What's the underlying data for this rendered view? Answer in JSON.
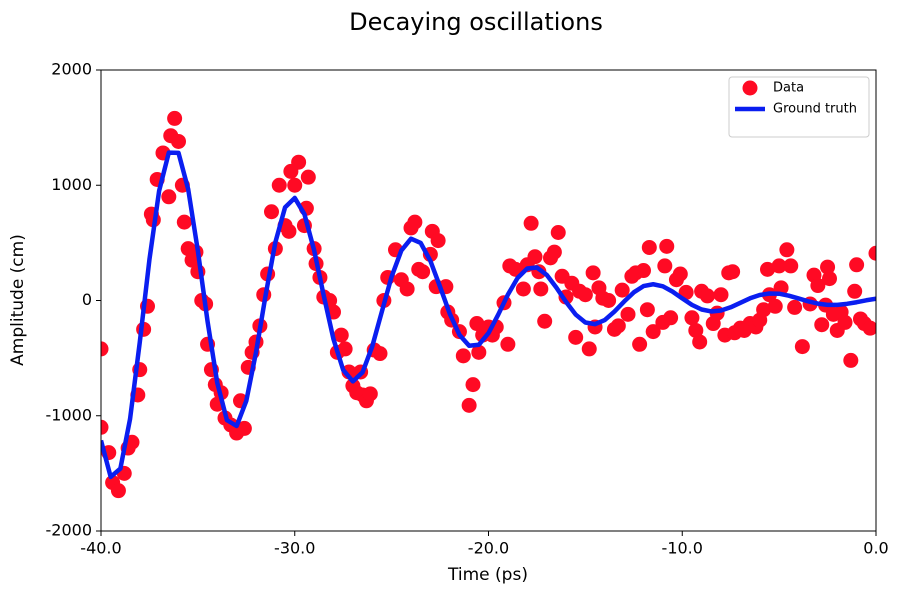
{
  "chart_data": {
    "type": "scatter",
    "title": "Decaying oscillations",
    "x_label": "Time (ps)",
    "y_label": "Amplitude (cm)",
    "xlim": [
      -40,
      0
    ],
    "ylim": [
      -2000,
      2000
    ],
    "xticks": [
      {
        "value": -40,
        "label": "-40.0"
      },
      {
        "value": -30,
        "label": "-30.0"
      },
      {
        "value": -20,
        "label": "-20.0"
      },
      {
        "value": -10,
        "label": "-10.0"
      },
      {
        "value": 0,
        "label": "0.0"
      }
    ],
    "yticks": [
      -2000,
      -1000,
      0,
      1000,
      2000
    ],
    "legend": "upper right",
    "series": [
      {
        "name": "Data",
        "type": "scatter",
        "color": "#ff0a24",
        "x": [
          -40,
          -40,
          -39.6,
          -39.4,
          -39.1,
          -38.8,
          -38.6,
          -38.4,
          -38.1,
          -38,
          -37.8,
          -37.6,
          -37.4,
          -37.3,
          -37.1,
          -36.8,
          -36.5,
          -36.4,
          -36.2,
          -36,
          -35.8,
          -35.7,
          -35.5,
          -35.3,
          -35.1,
          -35,
          -34.8,
          -34.6,
          -34.5,
          -34.3,
          -34.1,
          -34,
          -33.8,
          -33.6,
          -33.3,
          -33,
          -32.8,
          -32.6,
          -32.4,
          -32.2,
          -32,
          -31.8,
          -31.6,
          -31.4,
          -31.2,
          -31,
          -30.8,
          -30.5,
          -30.3,
          -30.2,
          -30,
          -29.8,
          -29.5,
          -29.4,
          -29.3,
          -29,
          -28.9,
          -28.7,
          -28.5,
          -28.2,
          -28,
          -27.8,
          -27.6,
          -27.4,
          -27.2,
          -27,
          -26.8,
          -26.6,
          -26.5,
          -26.3,
          -26.1,
          -25.9,
          -25.6,
          -25.4,
          -25.2,
          -24.8,
          -24.5,
          -24.2,
          -24,
          -23.8,
          -23.6,
          -23.4,
          -23,
          -22.9,
          -22.6,
          -22.7,
          -22.2,
          -22.1,
          -21.9,
          -21.5,
          -21.3,
          -21,
          -20.8,
          -20.6,
          -20.5,
          -20.3,
          -20,
          -19.8,
          -19.6,
          -19.2,
          -19,
          -18.9,
          -18.6,
          -18.2,
          -18,
          -17.8,
          -17.6,
          -17.4,
          -17.3,
          -17.1,
          -16.8,
          -16.6,
          -16.4,
          -16.2,
          -16,
          -15.7,
          -15.5,
          -15.3,
          -15,
          -14.8,
          -14.6,
          -14.5,
          -14.3,
          -14.1,
          -13.8,
          -13.5,
          -13.3,
          -13.1,
          -12.8,
          -12.6,
          -12.4,
          -12.2,
          -12,
          -11.8,
          -11.7,
          -11.5,
          -11,
          -10.9,
          -10.8,
          -10.6,
          -10.3,
          -10.1,
          -9.8,
          -9.5,
          -9.3,
          -9.1,
          -9,
          -8.7,
          -8.4,
          -8.2,
          -8,
          -7.8,
          -7.6,
          -7.4,
          -7.3,
          -7,
          -6.8,
          -6.5,
          -6.2,
          -6,
          -5.8,
          -5.6,
          -5.5,
          -5.2,
          -5,
          -4.9,
          -4.6,
          -4.4,
          -4.2,
          -3.8,
          -3.4,
          -3.2,
          -3,
          -2.8,
          -2.6,
          -2.5,
          -2.4,
          -2.2,
          -2,
          -1.8,
          -1.6,
          -1.3,
          -1.1,
          -1,
          -0.8,
          -0.6,
          -0.3,
          0
        ],
        "values": [
          -420,
          -1100,
          -1320,
          -1580,
          -1650,
          -1500,
          -1280,
          -1230,
          -820,
          -600,
          -250,
          -50,
          750,
          700,
          1050,
          1280,
          900,
          1430,
          1580,
          1380,
          1000,
          680,
          450,
          350,
          420,
          250,
          0,
          -30,
          -380,
          -600,
          -730,
          -900,
          -800,
          -1020,
          -1080,
          -1150,
          -870,
          -1110,
          -580,
          -450,
          -360,
          -220,
          50,
          230,
          770,
          450,
          1000,
          650,
          600,
          1120,
          1000,
          1200,
          650,
          800,
          1070,
          450,
          320,
          200,
          30,
          0,
          -100,
          -450,
          -300,
          -420,
          -620,
          -740,
          -800,
          -620,
          -820,
          -870,
          -810,
          -430,
          -460,
          0,
          200,
          440,
          180,
          100,
          630,
          680,
          270,
          250,
          400,
          600,
          520,
          120,
          120,
          -100,
          -170,
          -270,
          -480,
          -910,
          -730,
          -200,
          -450,
          -300,
          -230,
          -300,
          -230,
          -20,
          -380,
          300,
          270,
          100,
          310,
          670,
          380,
          250,
          100,
          -180,
          370,
          420,
          590,
          210,
          30,
          150,
          -320,
          80,
          50,
          -420,
          240,
          -230,
          110,
          20,
          0,
          -250,
          -220,
          90,
          -120,
          210,
          240,
          -380,
          260,
          -80,
          460,
          -270,
          -190,
          300,
          470,
          -150,
          180,
          230,
          70,
          -150,
          -260,
          -360,
          80,
          40,
          -200,
          -110,
          50,
          -300,
          240,
          250,
          -280,
          -240,
          -260,
          -200,
          -230,
          -170,
          -80,
          270,
          50,
          -50,
          300,
          110,
          440,
          300,
          -60,
          -400,
          -30,
          220,
          130,
          -210,
          -40,
          290,
          190,
          -120,
          -260,
          -100,
          -190,
          -520,
          80,
          310,
          -160,
          -200,
          -240,
          410
        ]
      },
      {
        "name": "Ground truth",
        "type": "line",
        "color": "#0a1ef0",
        "x": [
          -40,
          -39.5,
          -39,
          -38.5,
          -38,
          -37.5,
          -37,
          -36.5,
          -36,
          -35.5,
          -35,
          -34.5,
          -34,
          -33.5,
          -33,
          -32.5,
          -32,
          -31.5,
          -31,
          -30.5,
          -30,
          -29.5,
          -29,
          -28.5,
          -28,
          -27.5,
          -27,
          -26.5,
          -26,
          -25.5,
          -25,
          -24.5,
          -24,
          -23.5,
          -23,
          -22.5,
          -22,
          -21.5,
          -21,
          -20.5,
          -20,
          -19.5,
          -19,
          -18.5,
          -18,
          -17.5,
          -17,
          -16.5,
          -16,
          -15.5,
          -15,
          -14.5,
          -14,
          -13.5,
          -13,
          -12.5,
          -12,
          -11.5,
          -11,
          -10.5,
          -10,
          -9.5,
          -9,
          -8.5,
          -8,
          -7.5,
          -7,
          -6.5,
          -6,
          -5.5,
          -5,
          -4.5,
          -4,
          -3.5,
          -3,
          -2.5,
          -2,
          -1.5,
          -1,
          -0.5,
          0
        ],
        "values": [
          -1214,
          -1531,
          -1458,
          -1028,
          -364,
          356,
          952,
          1283,
          1281,
          966,
          430,
          -182,
          -714,
          -1038,
          -1089,
          -870,
          -451,
          50,
          506,
          808,
          890,
          749,
          436,
          40,
          -336,
          -603,
          -702,
          -623,
          -398,
          -94,
          208,
          433,
          536,
          499,
          344,
          119,
          -114,
          -298,
          -393,
          -384,
          -283,
          -123,
          51,
          195,
          278,
          286,
          223,
          113,
          -12,
          -122,
          -191,
          -205,
          -170,
          -96,
          -9,
          71,
          125,
          141,
          123,
          77,
          18,
          -38,
          -78,
          -95,
          -87,
          -59,
          -20,
          19,
          48,
          61,
          59,
          42,
          18,
          -7,
          -27,
          -38,
          -38,
          -29,
          -15,
          2,
          15
        ]
      }
    ]
  }
}
